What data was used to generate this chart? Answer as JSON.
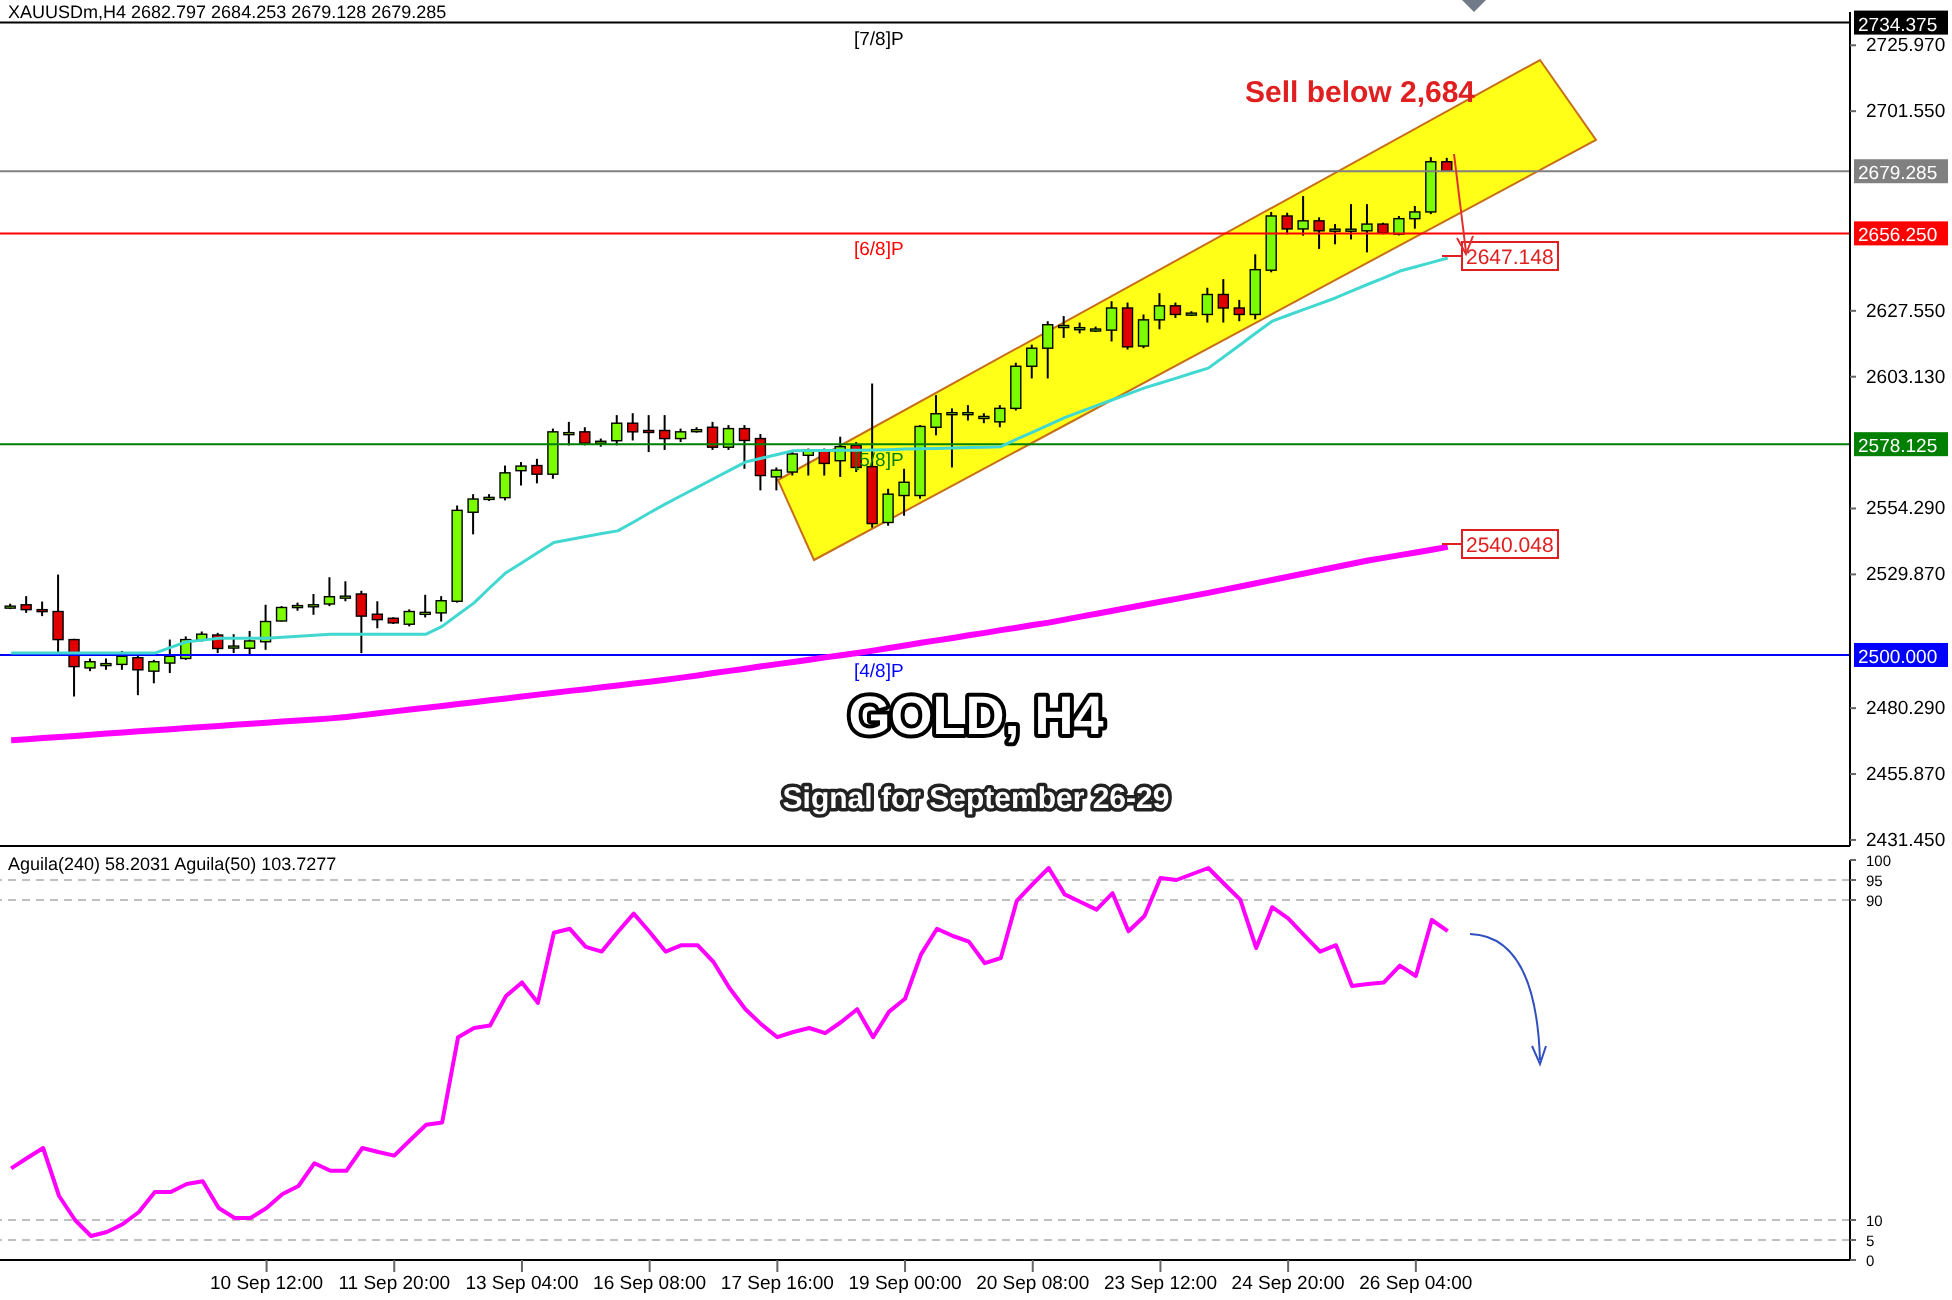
{
  "chart_data": [
    {
      "type": "candlestick",
      "title": "XAUUSDm,H4  2682.797 2684.253 2679.128 2679.285",
      "categories": [
        null,
        null,
        null,
        null,
        null,
        null,
        null,
        null,
        null,
        null,
        null,
        null,
        null,
        null,
        null,
        null,
        null,
        null,
        null,
        null,
        null,
        null,
        null,
        null,
        null,
        null,
        null,
        null,
        null,
        null,
        null,
        null,
        null,
        null,
        null,
        null,
        null,
        null,
        null,
        null,
        null,
        null,
        null,
        null,
        null,
        null,
        null,
        null,
        null,
        null,
        null,
        null,
        null,
        null,
        null,
        null,
        null,
        null,
        null,
        null,
        null,
        null,
        null,
        null,
        null,
        null,
        null,
        null,
        null,
        null,
        null,
        null,
        null,
        null,
        null,
        null,
        null,
        null,
        null,
        null,
        null,
        null,
        null,
        null,
        null,
        null,
        null,
        null,
        null,
        null,
        null
      ],
      "ohlc": [
        [
          2518.0,
          2519.0,
          2517.0,
          2518.1
        ],
        [
          2518.6,
          2521.8,
          2515.6,
          2516.8
        ],
        [
          2516.8,
          2519.8,
          2514.4,
          2516.5
        ],
        [
          2516.1,
          2529.8,
          2499.9,
          2505.7
        ],
        [
          2505.7,
          2506.0,
          2484.6,
          2495.7
        ],
        [
          2495.2,
          2498.7,
          2494.0,
          2497.5
        ],
        [
          2496.7,
          2498.7,
          2494.5,
          2496.8
        ],
        [
          2496.5,
          2501.5,
          2494.5,
          2499.5
        ],
        [
          2499.0,
          2500.7,
          2485.1,
          2494.5
        ],
        [
          2494.0,
          2498.2,
          2489.5,
          2497.5
        ],
        [
          2497.0,
          2505.7,
          2493.3,
          2499.5
        ],
        [
          2498.7,
          2506.9,
          2498.2,
          2505.7
        ],
        [
          2505.5,
          2508.7,
          2505.0,
          2507.7
        ],
        [
          2507.4,
          2508.2,
          2500.7,
          2502.4
        ],
        [
          2503.0,
          2507.7,
          2500.7,
          2503.3
        ],
        [
          2502.5,
          2508.9,
          2499.9,
          2505.2
        ],
        [
          2504.9,
          2518.6,
          2501.9,
          2512.4
        ],
        [
          2512.6,
          2518.1,
          2512.4,
          2517.6
        ],
        [
          2518.0,
          2519.4,
          2516.4,
          2518.3
        ],
        [
          2518.4,
          2522.6,
          2514.9,
          2518.6
        ],
        [
          2518.9,
          2528.8,
          2518.1,
          2521.6
        ],
        [
          2521.4,
          2527.3,
          2519.9,
          2521.8
        ],
        [
          2522.6,
          2523.8,
          2500.7,
          2514.4
        ],
        [
          2515.1,
          2519.9,
          2509.9,
          2513.1
        ],
        [
          2513.6,
          2514.0,
          2511.5,
          2511.9
        ],
        [
          2511.4,
          2516.9,
          2510.6,
          2516.1
        ],
        [
          2515.4,
          2522.3,
          2513.9,
          2515.8
        ],
        [
          2515.6,
          2521.8,
          2512.4,
          2520.1
        ],
        [
          2519.9,
          2555.4,
          2519.4,
          2553.6
        ],
        [
          2552.9,
          2559.6,
          2544.7,
          2557.8
        ],
        [
          2558.1,
          2559.6,
          2557.1,
          2558.4
        ],
        [
          2558.3,
          2570.2,
          2557.3,
          2567.5
        ],
        [
          2568.3,
          2571.5,
          2562.8,
          2570.0
        ],
        [
          2570.2,
          2572.7,
          2563.6,
          2567.0
        ],
        [
          2567.0,
          2583.9,
          2565.3,
          2582.7
        ],
        [
          2582.1,
          2586.4,
          2577.7,
          2582.4
        ],
        [
          2582.7,
          2584.4,
          2577.7,
          2578.5
        ],
        [
          2579.0,
          2580.2,
          2577.2,
          2579.2
        ],
        [
          2579.4,
          2588.9,
          2577.7,
          2585.9
        ],
        [
          2585.9,
          2589.6,
          2579.5,
          2582.7
        ],
        [
          2583.2,
          2588.9,
          2575.2,
          2583.0
        ],
        [
          2583.2,
          2588.9,
          2576.0,
          2580.2
        ],
        [
          2580.2,
          2583.9,
          2578.9,
          2582.7
        ],
        [
          2583.4,
          2584.4,
          2582.4,
          2583.5
        ],
        [
          2584.4,
          2586.4,
          2576.0,
          2577.0
        ],
        [
          2577.0,
          2585.2,
          2576.0,
          2583.9
        ],
        [
          2583.9,
          2585.2,
          2569.0,
          2579.5
        ],
        [
          2580.2,
          2581.9,
          2561.0,
          2566.5
        ],
        [
          2566.0,
          2569.5,
          2561.0,
          2568.5
        ],
        [
          2567.8,
          2575.2,
          2566.5,
          2574.5
        ],
        [
          2574.0,
          2576.5,
          2566.5,
          2576.0
        ],
        [
          2576.0,
          2576.5,
          2566.5,
          2571.0
        ],
        [
          2572.0,
          2580.9,
          2566.0,
          2577.2
        ],
        [
          2577.7,
          2578.9,
          2567.8,
          2569.5
        ],
        [
          2569.8,
          2600.6,
          2547.2,
          2548.7
        ],
        [
          2549.1,
          2561.6,
          2547.9,
          2559.6
        ],
        [
          2559.1,
          2569.0,
          2551.6,
          2564.0
        ],
        [
          2559.1,
          2585.2,
          2557.9,
          2584.7
        ],
        [
          2584.4,
          2596.3,
          2581.4,
          2589.4
        ],
        [
          2589.6,
          2591.4,
          2569.5,
          2589.8
        ],
        [
          2589.6,
          2592.6,
          2586.9,
          2589.8
        ],
        [
          2588.0,
          2589.6,
          2585.9,
          2588.4
        ],
        [
          2586.4,
          2592.6,
          2584.4,
          2591.4
        ],
        [
          2591.4,
          2608.3,
          2590.6,
          2607.0
        ],
        [
          2607.0,
          2615.0,
          2602.5,
          2613.7
        ],
        [
          2613.7,
          2623.7,
          2602.5,
          2622.4
        ],
        [
          2621.9,
          2625.6,
          2617.5,
          2622.1
        ],
        [
          2621.2,
          2623.2,
          2619.2,
          2621.3
        ],
        [
          2620.7,
          2621.7,
          2619.7,
          2620.8
        ],
        [
          2620.4,
          2631.1,
          2616.2,
          2628.6
        ],
        [
          2628.6,
          2630.6,
          2613.2,
          2614.2
        ],
        [
          2614.5,
          2626.2,
          2613.7,
          2624.2
        ],
        [
          2624.2,
          2634.1,
          2620.7,
          2629.4
        ],
        [
          2629.4,
          2630.6,
          2624.9,
          2626.2
        ],
        [
          2626.6,
          2627.4,
          2625.6,
          2626.7
        ],
        [
          2626.2,
          2636.1,
          2623.2,
          2633.6
        ],
        [
          2633.6,
          2639.3,
          2623.2,
          2628.6
        ],
        [
          2628.6,
          2631.6,
          2623.7,
          2626.2
        ],
        [
          2626.2,
          2648.5,
          2624.4,
          2642.8
        ],
        [
          2642.6,
          2664.2,
          2641.8,
          2662.7
        ],
        [
          2662.7,
          2663.9,
          2655.9,
          2657.9
        ],
        [
          2657.9,
          2670.1,
          2655.4,
          2660.9
        ],
        [
          2660.9,
          2662.2,
          2650.5,
          2657.2
        ],
        [
          2657.6,
          2659.7,
          2652.2,
          2657.8
        ],
        [
          2657.7,
          2667.1,
          2654.0,
          2657.8
        ],
        [
          2657.2,
          2667.1,
          2649.2,
          2659.7
        ],
        [
          2659.7,
          2660.2,
          2655.9,
          2656.4
        ],
        [
          2656.0,
          2662.7,
          2655.5,
          2661.7
        ],
        [
          2661.7,
          2666.4,
          2658.0,
          2664.2
        ],
        [
          2664.2,
          2684.5,
          2663.4,
          2682.8
        ],
        [
          2682.797,
          2684.253,
          2679.128,
          2679.285
        ]
      ],
      "colors": [
        "#7cfc00",
        "#e00000",
        "#e00000",
        "#e00000",
        "#e00000",
        "#7cfc00",
        "#7cfc00",
        "#7cfc00",
        "#e00000",
        "#7cfc00",
        "#7cfc00",
        "#7cfc00",
        "#7cfc00",
        "#e00000",
        "#7cfc00",
        "#7cfc00",
        "#7cfc00",
        "#7cfc00",
        "#7cfc00",
        "#7cfc00",
        "#7cfc00",
        "#7cfc00",
        "#e00000",
        "#e00000",
        "#e00000",
        "#7cfc00",
        "#7cfc00",
        "#7cfc00",
        "#7cfc00",
        "#7cfc00",
        "#7cfc00",
        "#7cfc00",
        "#7cfc00",
        "#e00000",
        "#7cfc00",
        "#7cfc00",
        "#e00000",
        "#7cfc00",
        "#7cfc00",
        "#e00000",
        "#e00000",
        "#e00000",
        "#7cfc00",
        "#7cfc00",
        "#e00000",
        "#7cfc00",
        "#e00000",
        "#e00000",
        "#7cfc00",
        "#7cfc00",
        "#7cfc00",
        "#e00000",
        "#7cfc00",
        "#e00000",
        "#e00000",
        "#7cfc00",
        "#7cfc00",
        "#7cfc00",
        "#7cfc00",
        "#7cfc00",
        "#7cfc00",
        "#7cfc00",
        "#7cfc00",
        "#7cfc00",
        "#7cfc00",
        "#7cfc00",
        "#7cfc00",
        "#7cfc00",
        "#7cfc00",
        "#7cfc00",
        "#e00000",
        "#7cfc00",
        "#7cfc00",
        "#e00000",
        "#7cfc00",
        "#7cfc00",
        "#e00000",
        "#e00000",
        "#7cfc00",
        "#7cfc00",
        "#e00000",
        "#7cfc00",
        "#e00000",
        "#7cfc00",
        "#7cfc00",
        "#7cfc00",
        "#e00000",
        "#7cfc00",
        "#7cfc00",
        "#7cfc00",
        "#e00000"
      ],
      "series": [
        {
          "type": "line",
          "color": "#40d8d0",
          "values": [
            2500.7,
            2500.7,
            2500.7,
            2500.7,
            2500.7,
            2500.7,
            2500.7,
            2500.7,
            2500.7,
            2500.7,
            2502.8,
            2504.9,
            2505.5,
            2506.2,
            2506.2,
            2506.2,
            2506.2,
            2506.6,
            2506.9,
            2507.3,
            2507.7,
            2507.7,
            2507.7,
            2507.7,
            2507.7,
            2507.7,
            2507.7,
            2510.6,
            2515.0,
            2519.3,
            2525.0,
            2530.5,
            2534.2,
            2538.0,
            2541.7,
            2542.8,
            2543.9,
            2545.0,
            2546.0,
            2549.3,
            2552.7,
            2556.0,
            2559.1,
            2562.2,
            2565.3,
            2568.4,
            2571.5,
            2572.9,
            2574.3,
            2575.7,
            2575.8,
            2575.8,
            2575.9,
            2575.9,
            2576.0,
            2576.1,
            2576.3,
            2576.4,
            2576.5,
            2576.7,
            2576.9,
            2577.0,
            2577.2,
            2580.0,
            2582.6,
            2585.3,
            2588.0,
            2590.2,
            2592.4,
            2594.6,
            2596.8,
            2599.0,
            2600.8,
            2602.6,
            2604.5,
            2606.3,
            2610.6,
            2615.0,
            2619.4,
            2623.7,
            2625.9,
            2628.1,
            2630.2,
            2632.4,
            2634.9,
            2637.4,
            2639.8,
            2642.3,
            2643.9,
            2645.5,
            2647.148
          ]
        },
        {
          "type": "line",
          "color": "#ff00ff",
          "values": [
            2468.4,
            2468.8,
            2469.2,
            2469.6,
            2470.0,
            2470.4,
            2470.9,
            2471.3,
            2471.7,
            2472.1,
            2472.5,
            2472.9,
            2473.3,
            2473.7,
            2474.1,
            2474.5,
            2474.9,
            2475.3,
            2475.7,
            2476.1,
            2476.5,
            2477.0,
            2477.7,
            2478.4,
            2479.1,
            2479.8,
            2480.4,
            2481.1,
            2481.8,
            2482.5,
            2483.2,
            2483.9,
            2484.6,
            2485.3,
            2486.0,
            2486.7,
            2487.3,
            2488.0,
            2488.7,
            2489.4,
            2490.1,
            2490.8,
            2491.6,
            2492.4,
            2493.3,
            2494.1,
            2494.9,
            2495.8,
            2496.6,
            2497.4,
            2498.2,
            2499.1,
            2499.9,
            2500.7,
            2501.6,
            2502.6,
            2503.5,
            2504.5,
            2505.4,
            2506.3,
            2507.3,
            2508.2,
            2509.2,
            2510.1,
            2511.1,
            2512.0,
            2513.1,
            2514.2,
            2515.3,
            2516.4,
            2517.5,
            2518.6,
            2519.7,
            2520.8,
            2521.9,
            2523.0,
            2524.2,
            2525.4,
            2526.6,
            2527.8,
            2529.0,
            2530.2,
            2531.4,
            2532.6,
            2533.8,
            2535.0,
            2536.0,
            2537.0,
            2538.0,
            2539.0,
            2540.048
          ]
        }
      ],
      "ylim": [
        2429.2,
        2738.3
      ],
      "yticks": [
        {
          "value": 2725.97,
          "label": "2725.970"
        },
        {
          "value": 2701.55,
          "label": "2701.550"
        },
        {
          "value": 2627.55,
          "label": "2627.550"
        },
        {
          "value": 2603.13,
          "label": "2603.130"
        },
        {
          "value": 2554.29,
          "label": "2554.290"
        },
        {
          "value": 2529.87,
          "label": "2529.870"
        },
        {
          "value": 2480.29,
          "label": "2480.290"
        },
        {
          "value": 2455.87,
          "label": "2455.870"
        },
        {
          "value": 2431.45,
          "label": "2431.450"
        }
      ],
      "ref_lines": [
        {
          "axis": "y",
          "value": 2734.375,
          "label": "[7/8]P",
          "color": "#000000"
        },
        {
          "axis": "y",
          "value": 2679.285,
          "label": null,
          "color": "#808080"
        },
        {
          "axis": "y",
          "value": 2656.25,
          "label": "[6/8]P",
          "color": "#ff0000"
        },
        {
          "axis": "y",
          "value": 2578.125,
          "label": "[5/8]P",
          "color": "#008000"
        },
        {
          "axis": "y",
          "value": 2500,
          "label": "[4/8]P",
          "color": "#0000ff"
        }
      ],
      "annotations": [
        "Sell below 2,684",
        "GOLD, H4",
        "Signal for September 26-29",
        "2647.148",
        "2540.048",
        "2734.375",
        "2679.285",
        "2656.250",
        "2578.125",
        "2500.000"
      ],
      "tick_labels": "y"
    },
    {
      "type": "line",
      "title": "Aguila(240) 58.2031  Aguila(50) 103.7277",
      "categories": [
        null,
        null,
        null,
        null,
        null,
        null,
        null,
        null,
        null,
        null,
        null,
        null,
        null,
        null,
        null,
        null,
        "10 Sep 12:00",
        null,
        null,
        null,
        null,
        null,
        null,
        null,
        "11 Sep 20:00",
        null,
        null,
        null,
        null,
        null,
        null,
        null,
        "13 Sep 04:00",
        null,
        null,
        null,
        null,
        null,
        null,
        null,
        "16 Sep 08:00",
        null,
        null,
        null,
        null,
        null,
        null,
        null,
        "17 Sep 16:00",
        null,
        null,
        null,
        null,
        null,
        null,
        null,
        "19 Sep 00:00",
        null,
        null,
        null,
        null,
        null,
        null,
        null,
        "20 Sep 08:00",
        null,
        null,
        null,
        null,
        null,
        null,
        null,
        "23 Sep 12:00",
        null,
        null,
        null,
        null,
        null,
        null,
        null,
        "24 Sep 20:00",
        null,
        null,
        null,
        null,
        null,
        null,
        null,
        "26 Sep 04:00",
        null,
        null
      ],
      "series": [
        {
          "color": "#ff00ff",
          "values": [
            22.9,
            25.5,
            28,
            16,
            10,
            6,
            7,
            9,
            12,
            17,
            17,
            19,
            19.7,
            13,
            10.5,
            10.5,
            13,
            16.5,
            18.5,
            24.2,
            22.3,
            22.3,
            28,
            27,
            26.1,
            30,
            33.8,
            34.4,
            55.7,
            58,
            58.6,
            66,
            69.4,
            64.3,
            81.8,
            82.8,
            78.3,
            77.1,
            82,
            86.6,
            82,
            77.1,
            78.7,
            78.7,
            74.5,
            68,
            62.7,
            58.9,
            55.7,
            57,
            58,
            56.7,
            59.5,
            62.7,
            55.7,
            62.1,
            65.3,
            76.4,
            82.8,
            81,
            79.6,
            74.2,
            75.5,
            89.8,
            94,
            98,
            91.4,
            89.5,
            87.6,
            91.7,
            82.2,
            86,
            95.5,
            95,
            96.5,
            98,
            94,
            90.1,
            78,
            88.2,
            85.4,
            81.2,
            77.1,
            78.7,
            68.5,
            69,
            69.4,
            73.6,
            71,
            85,
            82.2
          ]
        }
      ],
      "ylim": [
        0,
        100
      ],
      "yticks": [
        0,
        5,
        10,
        90,
        95,
        100
      ],
      "ref_lines": [
        {
          "axis": "y",
          "value": 95,
          "color": "#c0c0c0",
          "line_style": "dashed"
        },
        {
          "axis": "y",
          "value": 90,
          "color": "#c0c0c0",
          "line_style": "dashed"
        },
        {
          "axis": "y",
          "value": 10,
          "color": "#c0c0c0",
          "line_style": "dashed"
        },
        {
          "axis": "y",
          "value": 5,
          "color": "#c0c0c0",
          "line_style": "dashed"
        }
      ]
    }
  ]
}
